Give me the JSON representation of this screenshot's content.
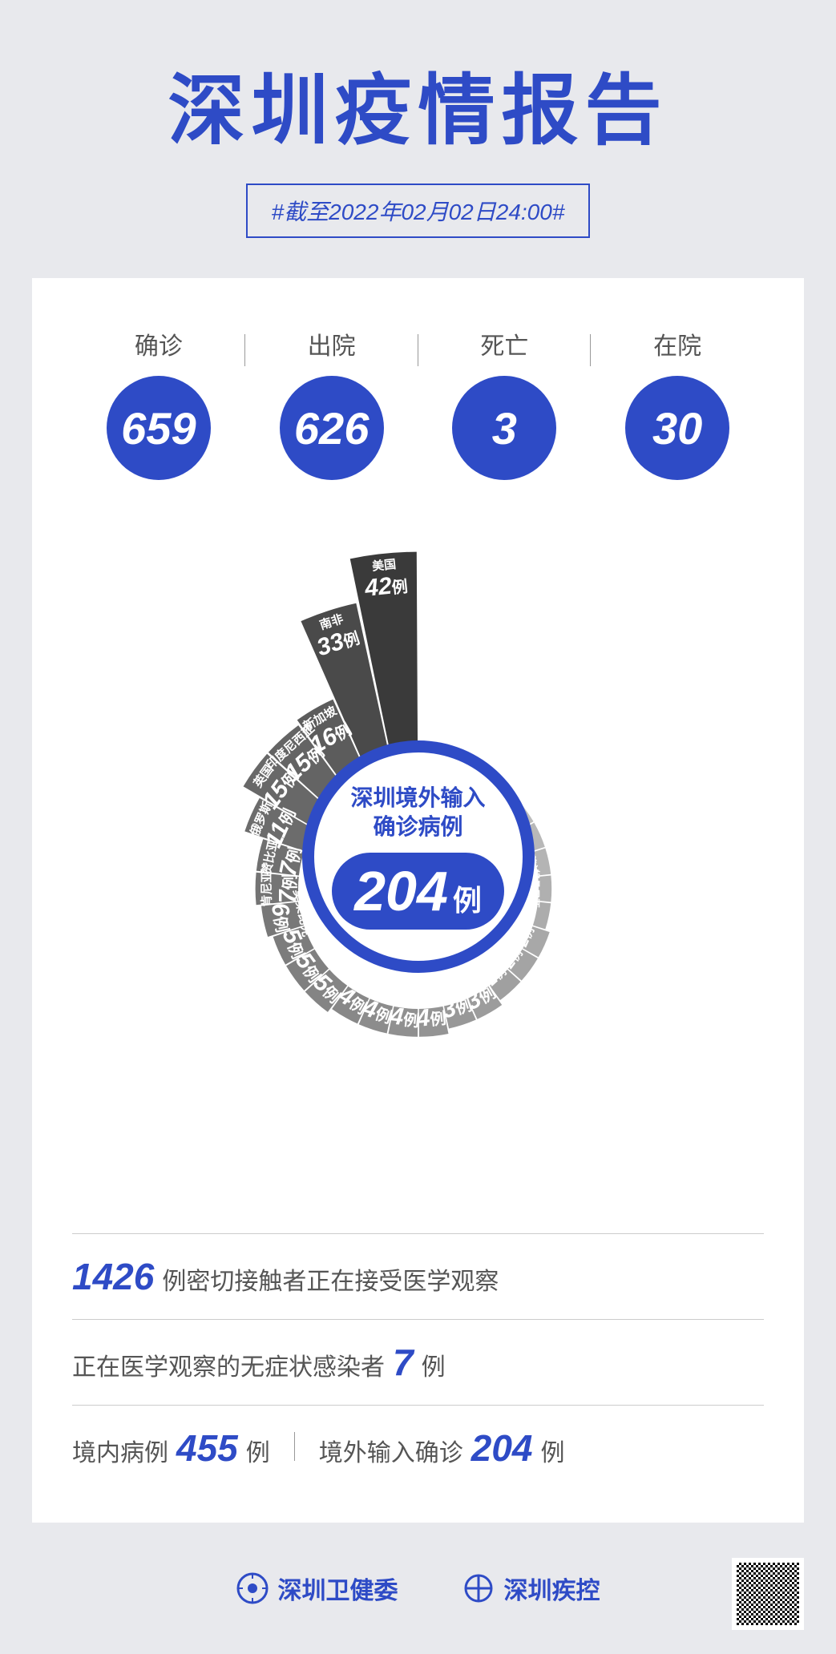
{
  "colors": {
    "brand": "#2e4bc6",
    "bg": "#e8e9ed",
    "card": "#ffffff",
    "text_muted": "#555555",
    "divider": "#999999"
  },
  "header": {
    "title": "深圳疫情报告",
    "subtitle": "#截至2022年02月02日24:00#"
  },
  "stats": [
    {
      "label": "确诊",
      "value": "659"
    },
    {
      "label": "出院",
      "value": "626"
    },
    {
      "label": "死亡",
      "value": "3"
    },
    {
      "label": "在院",
      "value": "30"
    }
  ],
  "chart": {
    "type": "radial-bar",
    "center_title_line1": "深圳境外输入",
    "center_title_line2": "确诊病例",
    "center_total": "204",
    "center_unit": "例",
    "ring_color": "#2e4bc6",
    "inner_radius": 150,
    "value_unit": "例",
    "base_radius": 160,
    "radius_scale": 6.2,
    "slice_gap_deg": 0.6,
    "slices": [
      {
        "country": "美国",
        "value": 42,
        "color": "#3a3a3a"
      },
      {
        "country": "沙特阿拉伯",
        "value": 1,
        "color": "#cfcfcf"
      },
      {
        "country": "刚果(布)",
        "value": 1,
        "color": "#cacaca"
      },
      {
        "country": "塞尔维亚",
        "value": 1,
        "color": "#c5c5c5"
      },
      {
        "country": "利比里亚",
        "value": 1,
        "color": "#c0c0c0"
      },
      {
        "country": "南苏丹",
        "value": 1,
        "color": "#bcbcbc"
      },
      {
        "country": "瑞士",
        "value": 1,
        "color": "#b8b8b8"
      },
      {
        "country": "荷兰",
        "value": 1,
        "color": "#b4b4b4"
      },
      {
        "country": "坦桑尼亚",
        "value": 1,
        "color": "#b0b0b0"
      },
      {
        "country": "莱索托",
        "value": 1,
        "color": "#acacac"
      },
      {
        "country": "巴西",
        "value": 2,
        "color": "#a8a8a8"
      },
      {
        "country": "印度",
        "value": 2,
        "color": "#a4a4a4"
      },
      {
        "country": "西班牙",
        "value": 2,
        "color": "#a0a0a0"
      },
      {
        "country": "韩国",
        "value": 3,
        "color": "#9c9c9c"
      },
      {
        "country": "菲律宾",
        "value": 3,
        "color": "#989898"
      },
      {
        "country": "泰国",
        "value": 4,
        "color": "#949494"
      },
      {
        "country": "刚果(金)",
        "value": 4,
        "color": "#909090"
      },
      {
        "country": "香港",
        "value": 4,
        "color": "#8c8c8c"
      },
      {
        "country": "法国",
        "value": 4,
        "color": "#888888"
      },
      {
        "country": "日本",
        "value": 5,
        "color": "#848484"
      },
      {
        "country": "柬埔寨",
        "value": 5,
        "color": "#808080"
      },
      {
        "country": "墨西哥",
        "value": 5,
        "color": "#7c7c7c"
      },
      {
        "country": "莫桑比克",
        "value": 6,
        "color": "#787878"
      },
      {
        "country": "肯尼亚",
        "value": 7,
        "color": "#747474"
      },
      {
        "country": "赞比亚",
        "value": 7,
        "color": "#707070"
      },
      {
        "country": "俄罗斯",
        "value": 11,
        "color": "#6c6c6c"
      },
      {
        "country": "英国",
        "value": 15,
        "color": "#686868"
      },
      {
        "country": "印度尼西亚",
        "value": 15,
        "color": "#646464"
      },
      {
        "country": "新加坡",
        "value": 16,
        "color": "#5c5c5c"
      },
      {
        "country": "南非",
        "value": 33,
        "color": "#4a4a4a"
      }
    ]
  },
  "info": {
    "line1_num": "1426",
    "line1_text": "例密切接触者正在接受医学观察",
    "line2_pre": "正在医学观察的无症状感染者",
    "line2_num": "7",
    "line2_post": "例",
    "line3a_label": "境内病例",
    "line3a_num": "455",
    "line3a_unit": "例",
    "line3b_label": "境外输入确诊",
    "line3b_num": "204",
    "line3b_unit": "例"
  },
  "footer": {
    "org1": "深圳卫健委",
    "org2": "深圳疾控"
  }
}
